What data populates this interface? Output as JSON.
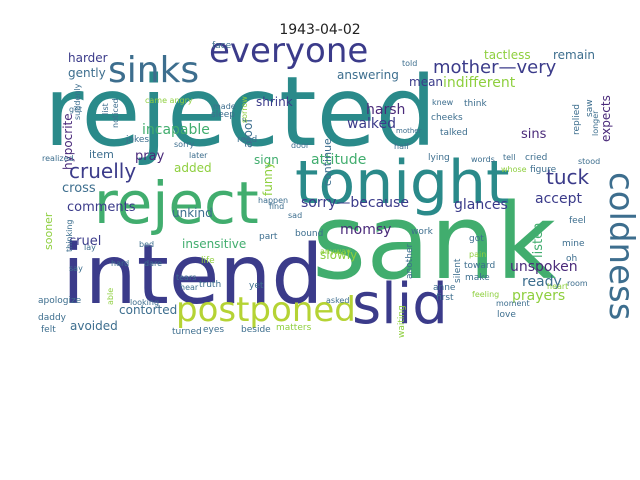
{
  "title": "1943-04-02",
  "palette": {
    "teal": "#2a8a8a",
    "navy": "#3b3b8a",
    "lime": "#b5d334",
    "slate": "#3d6e8e",
    "green": "#41ad6e",
    "purple": "#4a2a7a",
    "olive": "#8ecf3e"
  },
  "words": [
    {
      "id": "w-rejected",
      "text": "rejected",
      "c": "teal"
    },
    {
      "id": "w-sank",
      "text": "sank",
      "c": "green"
    },
    {
      "id": "w-intend",
      "text": "intend",
      "c": "navy"
    },
    {
      "id": "w-tonight",
      "text": "tonight",
      "c": "teal"
    },
    {
      "id": "w-reject",
      "text": "reject",
      "c": "green"
    },
    {
      "id": "w-slid",
      "text": "slid",
      "c": "navy"
    },
    {
      "id": "w-postponed",
      "text": "postponed",
      "c": "lime"
    },
    {
      "id": "w-everyone",
      "text": "everyone",
      "c": "navy"
    },
    {
      "id": "w-sinks",
      "text": "sinks",
      "c": "slate"
    },
    {
      "id": "w-coldness",
      "text": "coldness",
      "c": "slate"
    },
    {
      "id": "w-mother-very",
      "text": "mother—very",
      "c": "navy"
    },
    {
      "id": "w-tuck",
      "text": "tuck",
      "c": "navy"
    },
    {
      "id": "w-cruelly",
      "text": "cruelly",
      "c": "navy"
    },
    {
      "id": "w-tactless",
      "text": "tactless",
      "c": "olive"
    },
    {
      "id": "w-remain",
      "text": "remain",
      "c": "slate"
    },
    {
      "id": "w-indifferent",
      "text": "indifferent",
      "c": "olive"
    },
    {
      "id": "w-answering",
      "text": "answering",
      "c": "slate"
    },
    {
      "id": "w-harder",
      "text": "harder",
      "c": "navy"
    },
    {
      "id": "w-gently",
      "text": "gently",
      "c": "slate"
    },
    {
      "id": "w-shrink",
      "text": "shrink",
      "c": "navy"
    },
    {
      "id": "w-harsh",
      "text": "harsh",
      "c": "purple"
    },
    {
      "id": "w-walked",
      "text": "walked",
      "c": "navy"
    },
    {
      "id": "w-incapable",
      "text": "incapable",
      "c": "green"
    },
    {
      "id": "w-hypocrite",
      "text": "hypocrite",
      "c": "purple"
    },
    {
      "id": "w-aloof",
      "text": "aloof",
      "c": "slate"
    },
    {
      "id": "w-sins",
      "text": "sins",
      "c": "purple"
    },
    {
      "id": "w-attitude",
      "text": "attitude",
      "c": "green"
    },
    {
      "id": "w-sorry-because",
      "text": "sorry—because",
      "c": "navy"
    },
    {
      "id": "w-glances",
      "text": "glances",
      "c": "navy"
    },
    {
      "id": "w-accept",
      "text": "accept",
      "c": "navy"
    },
    {
      "id": "w-comments",
      "text": "comments",
      "c": "navy"
    },
    {
      "id": "w-cross",
      "text": "cross",
      "c": "slate"
    },
    {
      "id": "w-cruel",
      "text": "cruel",
      "c": "navy"
    },
    {
      "id": "w-unkind",
      "text": "unkind",
      "c": "slate"
    },
    {
      "id": "w-insensitive",
      "text": "insensitive",
      "c": "green"
    },
    {
      "id": "w-momsy",
      "text": "momsy",
      "c": "purple"
    },
    {
      "id": "w-slowly",
      "text": "slowly",
      "c": "olive"
    },
    {
      "id": "w-unspoken",
      "text": "unspoken",
      "c": "purple"
    },
    {
      "id": "w-ready",
      "text": "ready",
      "c": "slate"
    },
    {
      "id": "w-prayers",
      "text": "prayers",
      "c": "olive"
    },
    {
      "id": "w-avoided",
      "text": "avoided",
      "c": "slate"
    },
    {
      "id": "w-contorted",
      "text": "contorted",
      "c": "slate"
    },
    {
      "id": "w-pray",
      "text": "pray",
      "c": "purple"
    },
    {
      "id": "w-added",
      "text": "added",
      "c": "olive"
    },
    {
      "id": "w-item",
      "text": "item",
      "c": "slate"
    },
    {
      "id": "w-sign",
      "text": "sign",
      "c": "green"
    },
    {
      "id": "w-funny",
      "text": "funny",
      "c": "olive"
    },
    {
      "id": "w-continue",
      "text": "continue",
      "c": "slate"
    },
    {
      "id": "w-listen",
      "text": "listen",
      "c": "green"
    },
    {
      "id": "w-expects",
      "text": "expects",
      "c": "purple"
    },
    {
      "id": "w-mean",
      "text": "mean",
      "c": "navy"
    },
    {
      "id": "w-sooner",
      "text": "sooner",
      "c": "olive"
    },
    {
      "id": "w-apologize",
      "text": "apologize",
      "c": "slate"
    },
    {
      "id": "w-daddy",
      "text": "daddy",
      "c": "slate"
    },
    {
      "id": "w-felt",
      "text": "felt",
      "c": "slate"
    },
    {
      "id": "w-turned",
      "text": "turned",
      "c": "slate"
    },
    {
      "id": "w-eyes",
      "text": "eyes",
      "c": "slate"
    },
    {
      "id": "w-beside",
      "text": "beside",
      "c": "slate"
    },
    {
      "id": "w-matters",
      "text": "matters",
      "c": "olive"
    },
    {
      "id": "w-waiting",
      "text": "waiting",
      "c": "olive"
    },
    {
      "id": "w-love",
      "text": "love",
      "c": "slate"
    },
    {
      "id": "w-moment",
      "text": "moment",
      "c": "slate"
    },
    {
      "id": "w-face",
      "text": "face",
      "c": "slate"
    },
    {
      "id": "w-told",
      "text": "told",
      "c": "slate"
    },
    {
      "id": "w-knew",
      "text": "knew",
      "c": "slate"
    },
    {
      "id": "w-think",
      "text": "think",
      "c": "slate"
    },
    {
      "id": "w-cheeks",
      "text": "cheeks",
      "c": "slate"
    },
    {
      "id": "w-talked",
      "text": "talked",
      "c": "slate"
    },
    {
      "id": "w-sleep",
      "text": "sleep",
      "c": "slate"
    },
    {
      "id": "w-jokes",
      "text": "jokes",
      "c": "slate"
    },
    {
      "id": "w-sorry",
      "text": "sorry",
      "c": "slate"
    },
    {
      "id": "w-door",
      "text": "door",
      "c": "slate"
    },
    {
      "id": "w-mother",
      "text": "mother",
      "c": "slate"
    },
    {
      "id": "w-half",
      "text": "half",
      "c": "slate"
    },
    {
      "id": "w-read",
      "text": "read",
      "c": "slate"
    },
    {
      "id": "w-realized",
      "text": "realized",
      "c": "slate"
    },
    {
      "id": "w-later",
      "text": "later",
      "c": "slate"
    },
    {
      "id": "w-lying",
      "text": "lying",
      "c": "slate"
    },
    {
      "id": "w-words",
      "text": "words",
      "c": "slate"
    },
    {
      "id": "w-tell",
      "text": "tell",
      "c": "slate"
    },
    {
      "id": "w-cried",
      "text": "cried",
      "c": "slate"
    },
    {
      "id": "w-stood",
      "text": "stood",
      "c": "slate"
    },
    {
      "id": "w-figure",
      "text": "figure",
      "c": "slate"
    },
    {
      "id": "w-whose",
      "text": "whose",
      "c": "olive"
    },
    {
      "id": "w-feel",
      "text": "feel",
      "c": "slate"
    },
    {
      "id": "w-mine",
      "text": "mine",
      "c": "slate"
    },
    {
      "id": "w-oh",
      "text": "oh",
      "c": "slate"
    },
    {
      "id": "w-room",
      "text": "room",
      "c": "slate"
    },
    {
      "id": "w-heart",
      "text": "heart",
      "c": "olive"
    },
    {
      "id": "w-make",
      "text": "make",
      "c": "slate"
    },
    {
      "id": "w-toward",
      "text": "toward",
      "c": "slate"
    },
    {
      "id": "w-anne",
      "text": "anne",
      "c": "slate"
    },
    {
      "id": "w-first",
      "text": "first",
      "c": "slate"
    },
    {
      "id": "w-silent",
      "text": "silent",
      "c": "slate"
    },
    {
      "id": "w-got",
      "text": "got",
      "c": "slate"
    },
    {
      "id": "w-pain",
      "text": "pain",
      "c": "olive"
    },
    {
      "id": "w-work",
      "text": "work",
      "c": "slate"
    },
    {
      "id": "w-another",
      "text": "another",
      "c": "slate"
    },
    {
      "id": "w-anyway",
      "text": "anyway",
      "c": "olive"
    },
    {
      "id": "w-asked",
      "text": "asked",
      "c": "slate"
    },
    {
      "id": "w-bound",
      "text": "bound",
      "c": "slate"
    },
    {
      "id": "w-sad",
      "text": "sad",
      "c": "slate"
    },
    {
      "id": "w-find",
      "text": "find",
      "c": "slate"
    },
    {
      "id": "w-part",
      "text": "part",
      "c": "slate"
    },
    {
      "id": "w-truth",
      "text": "truth",
      "c": "slate"
    },
    {
      "id": "w-happen",
      "text": "happen",
      "c": "slate"
    },
    {
      "id": "w-bed",
      "text": "bed",
      "c": "slate"
    },
    {
      "id": "w-hard",
      "text": "hard",
      "c": "slate"
    },
    {
      "id": "w-dare",
      "text": "dare",
      "c": "slate"
    },
    {
      "id": "w-life",
      "text": "life",
      "c": "olive"
    },
    {
      "id": "w-yet",
      "text": "yet",
      "c": "slate"
    },
    {
      "id": "w-looking",
      "text": "looking",
      "c": "slate"
    },
    {
      "id": "w-able",
      "text": "able",
      "c": "olive"
    },
    {
      "id": "w-say",
      "text": "say",
      "c": "slate"
    },
    {
      "id": "w-lay",
      "text": "lay",
      "c": "slate"
    },
    {
      "id": "w-thinking",
      "text": "thinking",
      "c": "slate"
    },
    {
      "id": "w-suddenly",
      "text": "suddenly",
      "c": "slate"
    },
    {
      "id": "w-list",
      "text": "list",
      "c": "slate"
    },
    {
      "id": "w-get",
      "text": "get",
      "c": "slate"
    },
    {
      "id": "w-noticed",
      "text": "noticed",
      "c": "slate"
    },
    {
      "id": "w-made",
      "text": "made",
      "c": "slate"
    },
    {
      "id": "w-came-angry",
      "text": "came angry",
      "c": "olive"
    },
    {
      "id": "w-replied",
      "text": "replied",
      "c": "slate"
    },
    {
      "id": "w-saw",
      "text": "saw",
      "c": "slate"
    },
    {
      "id": "w-longer",
      "text": "longer",
      "c": "slate"
    },
    {
      "id": "w-feeling",
      "text": "feeling",
      "c": "olive"
    },
    {
      "id": "w-tears",
      "text": "tears",
      "c": "slate"
    },
    {
      "id": "w-hear",
      "text": "hear",
      "c": "slate"
    },
    {
      "id": "w-sorrow",
      "text": "sorrow",
      "c": "olive"
    }
  ]
}
